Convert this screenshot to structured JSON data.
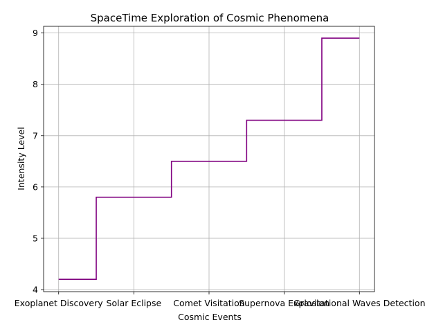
{
  "chart_data": {
    "type": "line",
    "step": "mid",
    "title": "SpaceTime Exploration of Cosmic Phenomena",
    "xlabel": "Cosmic Events",
    "ylabel": "Intensity Level",
    "categories": [
      "Exoplanet Discovery",
      "Solar Eclipse",
      "Comet Visitation",
      "Supernova Explosion",
      "Gravitational Waves Detection"
    ],
    "series": [
      {
        "values": [
          4.2,
          5.8,
          6.5,
          7.3,
          8.9
        ]
      }
    ],
    "ylim": [
      3.96,
      9.13
    ],
    "yticks": [
      4,
      5,
      6,
      7,
      8,
      9
    ],
    "grid": true,
    "line_color": "#800080"
  }
}
